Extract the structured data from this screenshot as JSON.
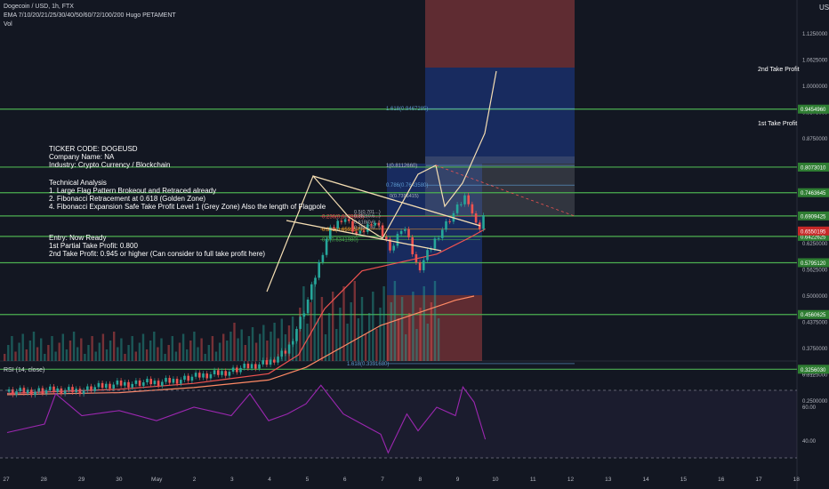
{
  "header": {
    "title": "Dogecoin / USD, 1h, FTX",
    "indicator": "EMA 7/10/20/21/25/30/40/50/60/72/100/200 Hugo PETAMENT",
    "volume": "Vol",
    "rsi": "RSI (14, close)"
  },
  "currency": "USD",
  "notes": {
    "ticker": "TICKER CODE: DOGEUSD",
    "company": "Company Name: NA",
    "industry": "Industry: Crypto Currency / Blockchain",
    "ta_title": "Technical Analysis",
    "ta1": "1. Large Flag Pattern Brokeout and Retraced already",
    "ta2": "2. Fibonacci Retracement at 0.618 (Golden Zone)",
    "ta4": "4. Fibonacci Expansion Safe Take Profit Level 1 (Grey Zone) Also the length of Flagpole",
    "entry": "Entry: Now Ready",
    "tp1": "1st Partial Take Profit: 0.800",
    "tp2": "2nd Take Profit: 0.945 or higher (Can consider to full take profit here)"
  },
  "take_profit_labels": {
    "second": "2nd Take Profit",
    "first": "1st Take Profit"
  },
  "colors": {
    "background": "#131722",
    "green_line": "#4caf50",
    "green_label": "#2e7d32",
    "red_label": "#c62828",
    "rsi": "#9c27b0",
    "up": "#26a69a",
    "down": "#ef5350",
    "flag": "#f5deb3",
    "ema_fast": "#ef5350",
    "ema_slow": "#ff8a65"
  },
  "chart_data": {
    "type": "candlestick",
    "x_ticks": [
      "27",
      "28",
      "29",
      "30",
      "May",
      "2",
      "3",
      "4",
      "5",
      "6",
      "7",
      "8",
      "9",
      "10",
      "11",
      "12",
      "13",
      "14",
      "15",
      "16",
      "17",
      "18"
    ],
    "price_ticks": [
      "1.1250000",
      "1.0625000",
      "1.0000000",
      "0.9375000",
      "0.8750000",
      "0.8125000",
      "0.7500000",
      "0.6875000",
      "0.6250000",
      "0.5625000",
      "0.5000000",
      "0.4375000",
      "0.3750000",
      "0.3125000",
      "0.2500000"
    ],
    "rsi_ticks": [
      "80.00",
      "60.00",
      "40.00"
    ],
    "horizontal_levels": [
      {
        "price": 0.945496,
        "label": "0.9454960",
        "color": "green"
      },
      {
        "price": 0.807301,
        "label": "0.8073010",
        "color": "green"
      },
      {
        "price": 0.7463645,
        "label": "0.7463645",
        "color": "green"
      },
      {
        "price": 0.6909425,
        "label": "0.6909425",
        "color": "green"
      },
      {
        "price": 0.6422625,
        "label": "0.6422625",
        "color": "green"
      },
      {
        "price": 0.579512,
        "label": "0.5795120",
        "color": "green"
      },
      {
        "price": 0.4560625,
        "label": "0.4560625",
        "color": "green"
      },
      {
        "price": 0.325603,
        "label": "0.3256030",
        "color": "green"
      }
    ],
    "current_price": {
      "price": 0.6550195,
      "label": "0.6550195"
    },
    "fib_expansion": [
      {
        "label": "1.618(0.9467285)",
        "price": 0.9467285
      },
      {
        "label": "1(0.8112660)",
        "price": 0.811266
      },
      {
        "label": "0.786(0.7643580)",
        "price": 0.764358
      },
      {
        "label": "1.618(0.3391680)",
        "price": 0.339168
      }
    ],
    "fib_retracement": [
      {
        "label": "0.236(0.6899805)",
        "price": 0.6899805
      },
      {
        "label": "0.382(0.6592575)",
        "price": 0.6592575
      },
      {
        "label": "0.5(0.6341980)",
        "price": 0.634198
      }
    ],
    "fib_small": [
      {
        "label": "0(0.7396415)",
        "price": 0.7396415
      },
      {
        "label": "0.5(0.701...)",
        "price": 0.7015
      },
      {
        "label": "0.382(0.6...)",
        "price": 0.692
      },
      {
        "label": "0.618(0.6...)",
        "price": 0.6765
      },
      {
        "label": "0.786(0.6...)",
        "price": 0.664
      }
    ],
    "price_path": [
      [
        0,
        0.272
      ],
      [
        2,
        0.275
      ],
      [
        3,
        0.29
      ],
      [
        4,
        0.292
      ],
      [
        5,
        0.305
      ],
      [
        6,
        0.32
      ],
      [
        7,
        0.34
      ],
      [
        7.5,
        0.37
      ],
      [
        8,
        0.475
      ],
      [
        8.3,
        0.56
      ],
      [
        8.6,
        0.65
      ],
      [
        9,
        0.69
      ],
      [
        9.4,
        0.64
      ],
      [
        9.8,
        0.68
      ],
      [
        10.3,
        0.61
      ],
      [
        10.6,
        0.67
      ],
      [
        11,
        0.56
      ],
      [
        11.5,
        0.64
      ],
      [
        12,
        0.7
      ],
      [
        12.3,
        0.74
      ],
      [
        12.6,
        0.65
      ],
      [
        12.8,
        0.7
      ]
    ],
    "rsi_path": [
      [
        0,
        45
      ],
      [
        1,
        50
      ],
      [
        1.3,
        68
      ],
      [
        2,
        55
      ],
      [
        3,
        58
      ],
      [
        4,
        52
      ],
      [
        5,
        60
      ],
      [
        6,
        55
      ],
      [
        6.5,
        68
      ],
      [
        7,
        52
      ],
      [
        7.5,
        56
      ],
      [
        8,
        62
      ],
      [
        8.4,
        73
      ],
      [
        9,
        56
      ],
      [
        9.5,
        50
      ],
      [
        10,
        44
      ],
      [
        10.2,
        33
      ],
      [
        10.7,
        56
      ],
      [
        11,
        46
      ],
      [
        11.5,
        60
      ],
      [
        12,
        55
      ],
      [
        12.2,
        72
      ],
      [
        12.5,
        63
      ],
      [
        12.8,
        41
      ]
    ]
  }
}
